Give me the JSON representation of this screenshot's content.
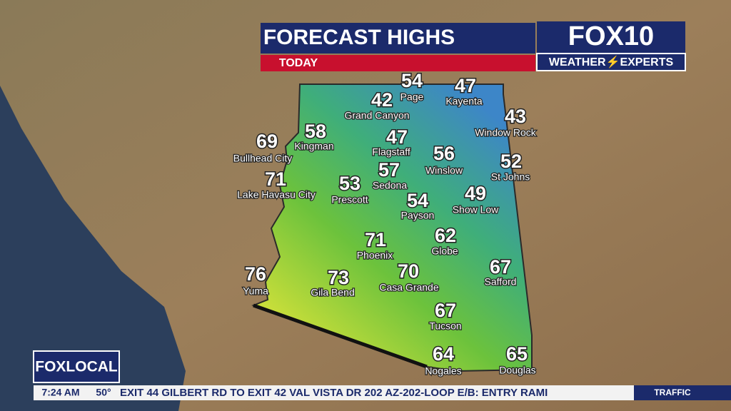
{
  "header": {
    "title": "FORECAST HIGHS",
    "subtitle": "TODAY"
  },
  "logo": {
    "brand": "FOX10",
    "tagline": "WEATHER⚡EXPERTS"
  },
  "cities": [
    {
      "name": "Page",
      "high": 54
    },
    {
      "name": "Grand Canyon",
      "high": 42
    },
    {
      "name": "Kayenta",
      "high": 47
    },
    {
      "name": "Window Rock",
      "high": 43
    },
    {
      "name": "Kingman",
      "high": 58
    },
    {
      "name": "Bullhead City",
      "high": 69
    },
    {
      "name": "Flagstaff",
      "high": 47
    },
    {
      "name": "Winslow",
      "high": 56
    },
    {
      "name": "St Johns",
      "high": 52
    },
    {
      "name": "Lake Havasu City",
      "high": 71
    },
    {
      "name": "Sedona",
      "high": 57
    },
    {
      "name": "Prescott",
      "high": 53
    },
    {
      "name": "Payson",
      "high": 54
    },
    {
      "name": "Show Low",
      "high": 49
    },
    {
      "name": "Phoenix",
      "high": 71
    },
    {
      "name": "Globe",
      "high": 62
    },
    {
      "name": "Safford",
      "high": 67
    },
    {
      "name": "Yuma",
      "high": 76
    },
    {
      "name": "Gila Bend",
      "high": 73
    },
    {
      "name": "Casa Grande",
      "high": 70
    },
    {
      "name": "Tucson",
      "high": 67
    },
    {
      "name": "Nogales",
      "high": 64
    },
    {
      "name": "Douglas",
      "high": 65
    }
  ],
  "footer": {
    "channel": "FOXLOCAL",
    "time": "7:24 AM",
    "temperature": "50°",
    "ticker": "EXIT 44 GILBERT RD TO EXIT 42 VAL VISTA DR  202  AZ-202-LOOP E/B: ENTRY RAMI",
    "section": "TRAFFIC"
  }
}
